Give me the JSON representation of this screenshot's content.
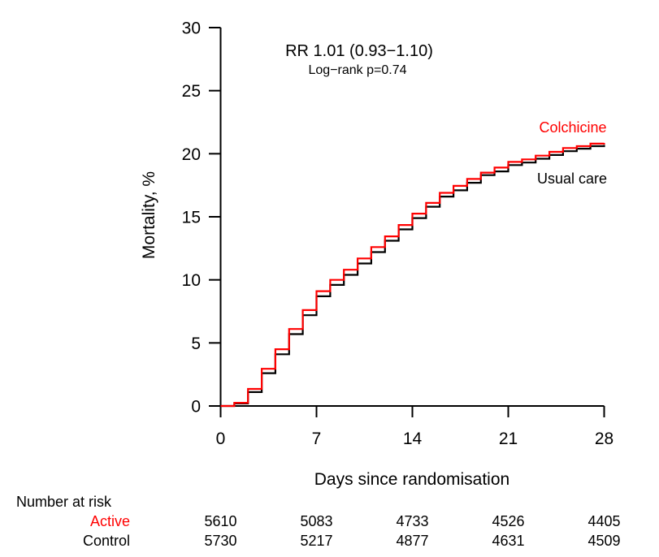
{
  "chart_data": {
    "type": "line",
    "subtype": "kaplan-meier-step",
    "title": "",
    "xlabel": "Days since randomisation",
    "ylabel": "Mortality, %",
    "xlim": [
      0,
      28
    ],
    "ylim": [
      0,
      30
    ],
    "xticks": [
      0,
      7,
      14,
      21,
      28
    ],
    "yticks": [
      0,
      5,
      10,
      15,
      20,
      25,
      30
    ],
    "grid": false,
    "annotations": {
      "rr": "RR 1.01 (0.93−1.10)",
      "logrank": "Log−rank p=0.74"
    },
    "x": [
      0,
      1,
      2,
      3,
      4,
      5,
      6,
      7,
      8,
      9,
      10,
      11,
      12,
      13,
      14,
      15,
      16,
      17,
      18,
      19,
      20,
      21,
      22,
      23,
      24,
      25,
      26,
      27,
      28
    ],
    "series": [
      {
        "name": "Colchicine",
        "color": "#ff0000",
        "values": [
          0,
          0.25,
          1.35,
          2.95,
          4.5,
          6.1,
          7.6,
          9.1,
          10.0,
          10.8,
          11.7,
          12.6,
          13.45,
          14.35,
          15.25,
          16.1,
          16.9,
          17.45,
          18.0,
          18.5,
          18.9,
          19.35,
          19.55,
          19.85,
          20.15,
          20.45,
          20.6,
          20.8,
          20.85
        ]
      },
      {
        "name": "Usual care",
        "color": "#000000",
        "values": [
          0,
          0.2,
          1.1,
          2.6,
          4.1,
          5.7,
          7.2,
          8.7,
          9.6,
          10.4,
          11.3,
          12.2,
          13.1,
          14.0,
          14.9,
          15.8,
          16.6,
          17.1,
          17.7,
          18.3,
          18.6,
          19.1,
          19.3,
          19.6,
          19.9,
          20.2,
          20.4,
          20.6,
          20.7
        ]
      }
    ],
    "risk_table": {
      "title": "Number at risk",
      "days": [
        0,
        7,
        14,
        21,
        28
      ],
      "rows": [
        {
          "label": "Active",
          "color": "#ff0000",
          "values": [
            "5610",
            "5083",
            "4733",
            "4526",
            "4405"
          ]
        },
        {
          "label": "Control",
          "color": "#000000",
          "values": [
            "5730",
            "5217",
            "4877",
            "4631",
            "4509"
          ]
        }
      ]
    }
  }
}
